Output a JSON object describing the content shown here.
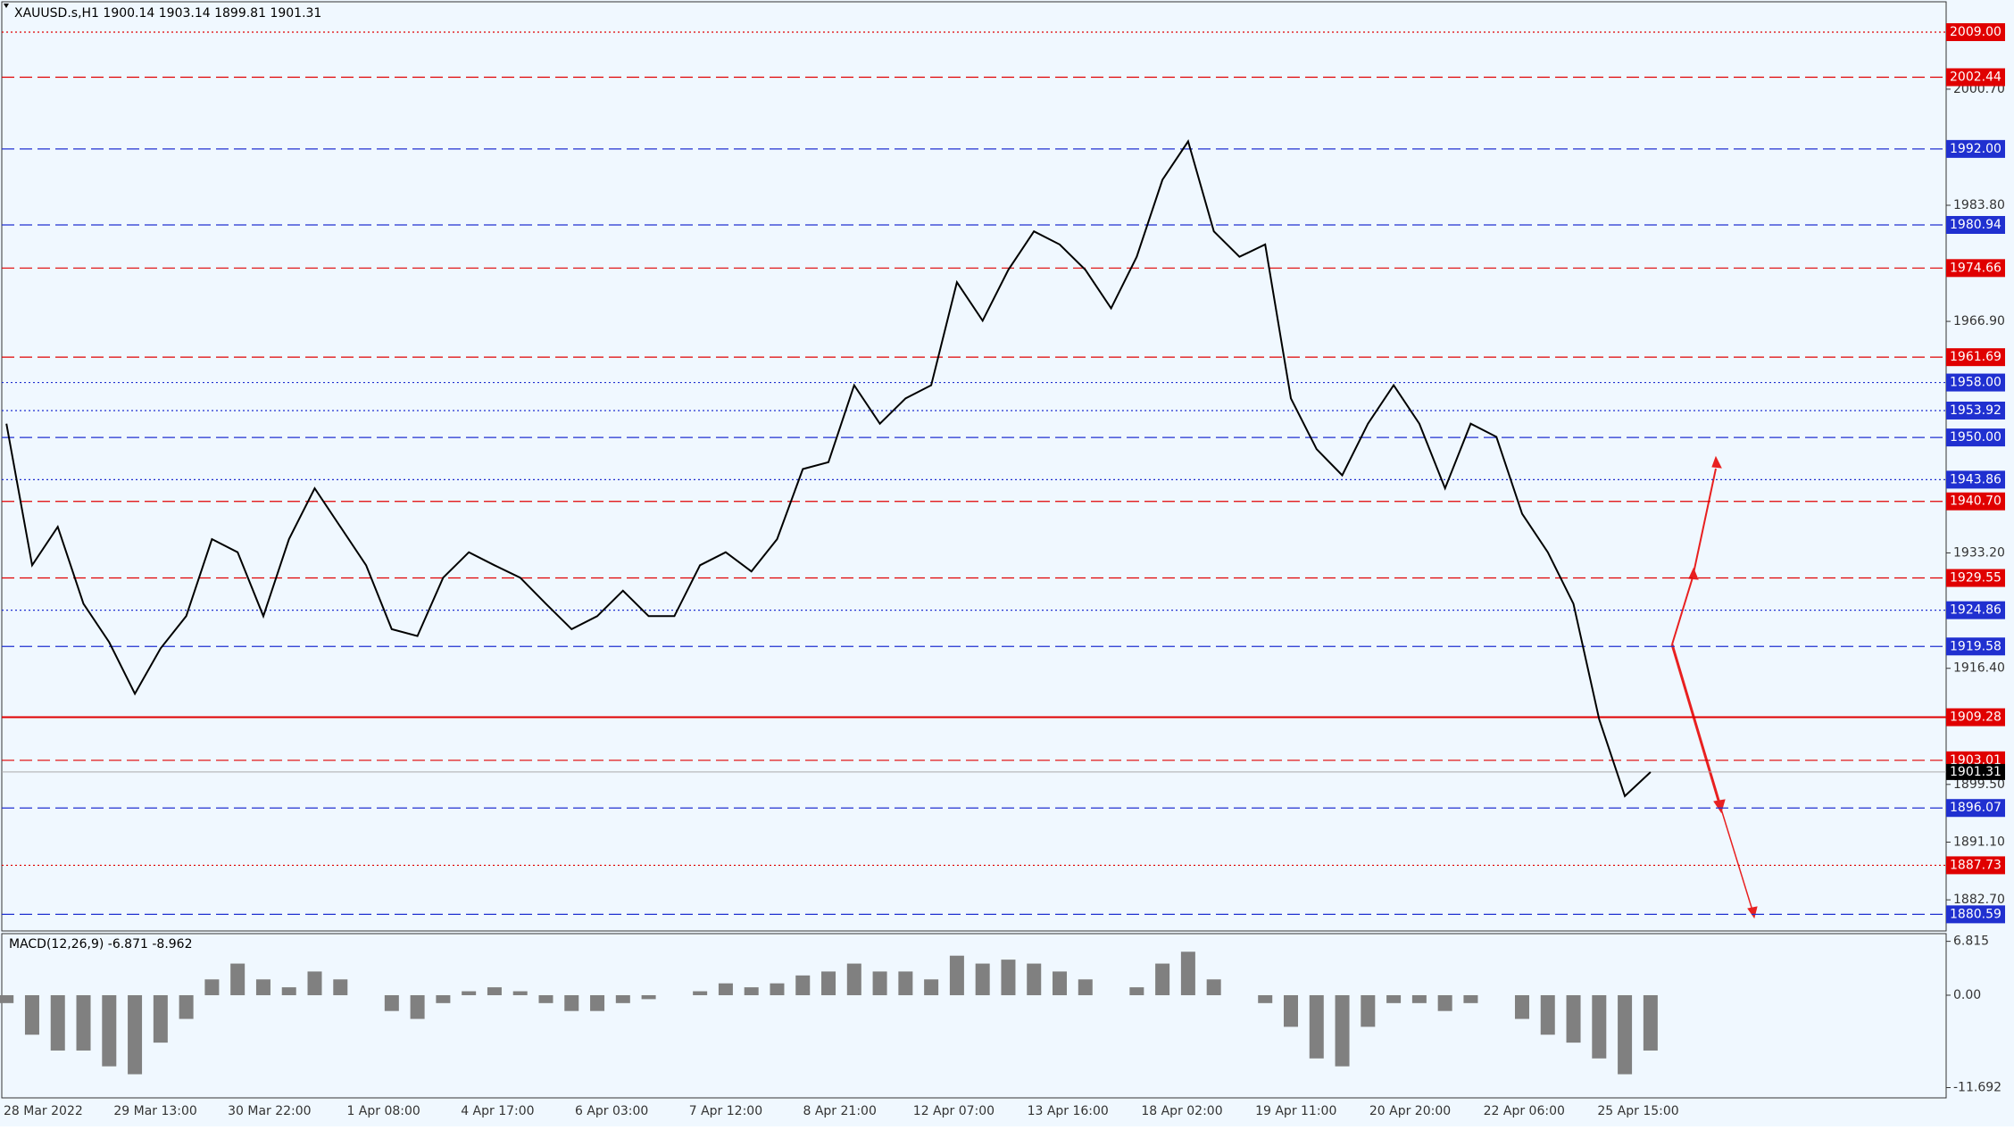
{
  "chart_data": {
    "type": "line",
    "title": "XAUUSD.s,H1  1900.14 1903.14 1899.81 1901.31",
    "ylim": [
      1878.17,
      2013.68
    ],
    "yticks": [
      {
        "value": 2000.7,
        "label": "2000.70"
      },
      {
        "value": 1983.8,
        "label": "1983.80"
      },
      {
        "value": 1966.9,
        "label": "1966.90"
      },
      {
        "value": 1933.2,
        "label": "1933.20"
      },
      {
        "value": 1916.4,
        "label": "1916.40"
      },
      {
        "value": 1899.5,
        "label": "1899.50"
      },
      {
        "value": 1891.1,
        "label": "1891.10"
      },
      {
        "value": 1882.7,
        "label": "1882.70"
      }
    ],
    "x_labels": [
      "28 Mar 2022",
      "29 Mar 13:00",
      "30 Mar 22:00",
      "1 Apr 08:00",
      "4 Apr 17:00",
      "6 Apr 03:00",
      "7 Apr 12:00",
      "8 Apr 21:00",
      "12 Apr 07:00",
      "13 Apr 16:00",
      "18 Apr 02:00",
      "19 Apr 11:00",
      "20 Apr 20:00",
      "22 Apr 06:00",
      "25 Apr 15:00"
    ],
    "series": [
      {
        "name": "XAUUSD.s",
        "color": "#000000",
        "values": [
          1952,
          1931.4,
          1937,
          1925.8,
          1920.2,
          1912.7,
          1919.3,
          1924,
          1935.2,
          1933.3,
          1924,
          1935.2,
          1942.6,
          1937,
          1931.4,
          1922.1,
          1921.1,
          1929.6,
          1933.3,
          1931.4,
          1929.6,
          1925.8,
          1922.1,
          1924,
          1927.7,
          1924,
          1924,
          1931.4,
          1933.3,
          1930.5,
          1935.2,
          1945.4,
          1946.4,
          1957.6,
          1952,
          1955.7,
          1957.6,
          1972.6,
          1967,
          1974.4,
          1980,
          1978.1,
          1974.4,
          1968.8,
          1976.3,
          1987.5,
          1993.1,
          1980,
          1976.3,
          1978.1,
          1955.7,
          1948.3,
          1944.5,
          1952,
          1957.6,
          1952,
          1942.6,
          1952,
          1950.1,
          1938.9,
          1933.3,
          1925.8,
          1909,
          1897.8,
          1901.3
        ]
      }
    ],
    "levels": [
      {
        "value": 2009,
        "label": "2009.00",
        "color": "#e00000",
        "style": "dotted"
      },
      {
        "value": 2002.44,
        "color": "#e00000",
        "style": "dashed"
      },
      {
        "value": 1992,
        "label": "1992.00",
        "color": "#2030d0",
        "style": "dashed"
      },
      {
        "value": 1980.94,
        "color": "#2030d0",
        "style": "dashed"
      },
      {
        "value": 1974.66,
        "color": "#e00000",
        "style": "dashed"
      },
      {
        "value": 1961.69,
        "color": "#e00000",
        "style": "dashed"
      },
      {
        "value": 1958,
        "label": "1958.00",
        "color": "#2030d0",
        "style": "dotted"
      },
      {
        "value": 1953.92,
        "color": "#2030d0",
        "style": "dotted"
      },
      {
        "value": 1950,
        "label": "1950.00",
        "color": "#2030d0",
        "style": "dashed"
      },
      {
        "value": 1943.86,
        "color": "#2030d0",
        "style": "dotted"
      },
      {
        "value": 1940.7,
        "label": "1940.70",
        "color": "#e00000",
        "style": "dashed"
      },
      {
        "value": 1929.55,
        "color": "#e00000",
        "style": "dashed"
      },
      {
        "value": 1924.86,
        "color": "#2030d0",
        "style": "dotted"
      },
      {
        "value": 1919.58,
        "color": "#2030d0",
        "style": "dashed"
      },
      {
        "value": 1909.28,
        "color": "#e00000",
        "style": "solid"
      },
      {
        "value": 1903.01,
        "color": "#e00000",
        "style": "dashed"
      },
      {
        "value": 1896.07,
        "color": "#2030d0",
        "style": "dashed"
      },
      {
        "value": 1887.73,
        "color": "#e00000",
        "style": "dotted"
      },
      {
        "value": 1880.59,
        "color": "#2030d0",
        "style": "dashed"
      }
    ],
    "current_price": 1901.31,
    "macd": {
      "title": "MACD(12,26,9) -6.871 -8.962",
      "color": "#808080",
      "ylim": [
        -12.99,
        7.79
      ],
      "yticks": [
        6.815,
        {
          "value": 0,
          "label": "0.00"
        },
        -11.692
      ],
      "values": [
        -1,
        -5,
        -7,
        -7,
        -9,
        -10,
        -6,
        -3,
        2,
        4,
        2,
        1,
        3,
        2,
        0,
        -2,
        -3,
        -1,
        0.5,
        1,
        0.5,
        -1,
        -2,
        -2,
        -1,
        -0.5,
        0,
        0.5,
        1.5,
        1,
        1.5,
        2.5,
        3,
        4,
        3,
        3,
        2,
        5,
        4,
        4.5,
        4,
        3,
        2,
        0,
        1,
        4,
        5.5,
        2,
        0,
        -1,
        -4,
        -8,
        -9,
        -4,
        -1,
        -1,
        -2,
        -1,
        0,
        -3,
        -5,
        -6,
        -8,
        -10,
        -7
      ]
    }
  }
}
